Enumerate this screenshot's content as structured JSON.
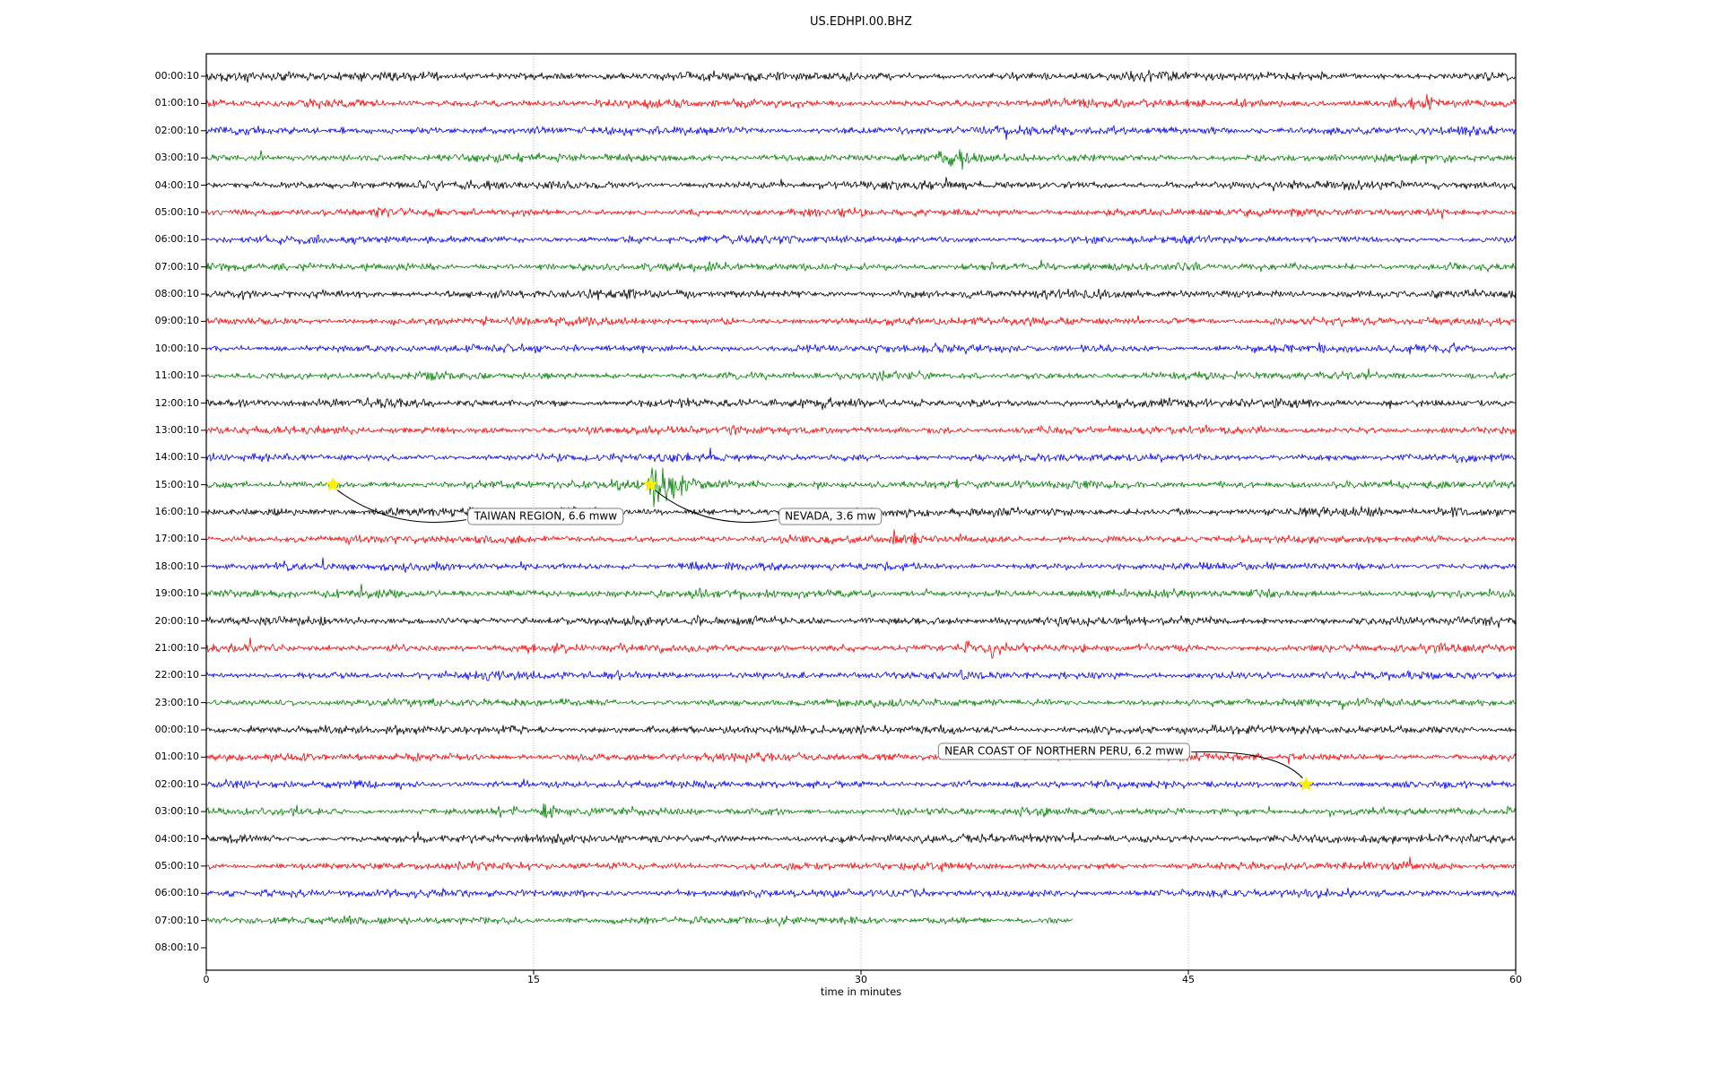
{
  "chart_data": {
    "type": "line",
    "variant": "seismogram-dayplot",
    "title": "US.EDHPI.00.BHZ",
    "xlabel": "time in minutes",
    "xlim": [
      0,
      60
    ],
    "x_ticks": [
      0,
      15,
      30,
      45,
      60
    ],
    "grid": "vertical-dotted",
    "grid_color": "#b0b0b0",
    "frame_color": "#000000",
    "star_color": "#ffee00",
    "color_cycle": [
      "#000000",
      "#ff0000",
      "#0000ff",
      "#008000"
    ],
    "rows": [
      {
        "label": "00:00:10",
        "color": "#000000",
        "end_min": 60,
        "amp": 2.4,
        "bursts": []
      },
      {
        "label": "01:00:10",
        "color": "#ff0000",
        "end_min": 60,
        "amp": 2.2,
        "bursts": [
          [
            39.3,
            5,
            0.12
          ],
          [
            40.1,
            4,
            0.1
          ],
          [
            44.3,
            4,
            0.1
          ],
          [
            54.5,
            7,
            0.15
          ],
          [
            55.2,
            5,
            0.1
          ],
          [
            56.0,
            8,
            0.18
          ],
          [
            56.6,
            5,
            0.12
          ]
        ]
      },
      {
        "label": "02:00:10",
        "color": "#0000ff",
        "end_min": 60,
        "amp": 2.2,
        "bursts": [
          [
            6.2,
            2.5,
            0.4
          ],
          [
            7.5,
            2.5,
            0.3
          ]
        ]
      },
      {
        "label": "03:00:10",
        "color": "#008000",
        "end_min": 60,
        "amp": 2.2,
        "bursts": [
          [
            2.2,
            7,
            0.06
          ],
          [
            2.5,
            10,
            0.05
          ],
          [
            33.6,
            8,
            0.12
          ],
          [
            34.1,
            12,
            0.1
          ],
          [
            34.6,
            10,
            0.12
          ],
          [
            35.1,
            6,
            0.15
          ]
        ]
      },
      {
        "label": "04:00:10",
        "color": "#000000",
        "end_min": 60,
        "amp": 2.3,
        "bursts": []
      },
      {
        "label": "05:00:10",
        "color": "#ff0000",
        "end_min": 60,
        "amp": 2.1,
        "bursts": []
      },
      {
        "label": "06:00:10",
        "color": "#0000ff",
        "end_min": 60,
        "amp": 2.1,
        "bursts": []
      },
      {
        "label": "07:00:10",
        "color": "#008000",
        "end_min": 60,
        "amp": 2.1,
        "bursts": []
      },
      {
        "label": "08:00:10",
        "color": "#000000",
        "end_min": 60,
        "amp": 2.3,
        "bursts": []
      },
      {
        "label": "09:00:10",
        "color": "#ff0000",
        "end_min": 60,
        "amp": 2.1,
        "bursts": []
      },
      {
        "label": "10:00:10",
        "color": "#0000ff",
        "end_min": 60,
        "amp": 2.1,
        "bursts": []
      },
      {
        "label": "11:00:10",
        "color": "#008000",
        "end_min": 60,
        "amp": 2.0,
        "bursts": []
      },
      {
        "label": "12:00:10",
        "color": "#000000",
        "end_min": 60,
        "amp": 2.3,
        "bursts": []
      },
      {
        "label": "13:00:10",
        "color": "#ff0000",
        "end_min": 60,
        "amp": 2.1,
        "bursts": []
      },
      {
        "label": "14:00:10",
        "color": "#0000ff",
        "end_min": 60,
        "amp": 2.0,
        "bursts": []
      },
      {
        "label": "15:00:10",
        "color": "#008000",
        "end_min": 60,
        "amp": 2.1,
        "bursts": [
          [
            18.8,
            9,
            0.08
          ],
          [
            19.1,
            6,
            0.1
          ],
          [
            20.45,
            26,
            0.12
          ],
          [
            20.8,
            20,
            0.2
          ],
          [
            21.3,
            14,
            0.25
          ],
          [
            22.0,
            8,
            0.5
          ],
          [
            23.5,
            4,
            1.0
          ]
        ]
      },
      {
        "label": "16:00:10",
        "color": "#000000",
        "end_min": 60,
        "amp": 2.3,
        "bursts": []
      },
      {
        "label": "17:00:10",
        "color": "#ff0000",
        "end_min": 60,
        "amp": 2.1,
        "bursts": [
          [
            31.5,
            13,
            0.08
          ],
          [
            31.9,
            9,
            0.1
          ],
          [
            32.4,
            7,
            0.12
          ]
        ]
      },
      {
        "label": "18:00:10",
        "color": "#0000ff",
        "end_min": 60,
        "amp": 2.0,
        "bursts": [
          [
            14.4,
            8,
            0.05
          ],
          [
            14.7,
            5,
            0.08
          ],
          [
            15.1,
            4,
            0.05
          ],
          [
            22.3,
            6,
            0.15
          ]
        ]
      },
      {
        "label": "19:00:10",
        "color": "#008000",
        "end_min": 60,
        "amp": 2.2,
        "bursts": [
          [
            8.9,
            3,
            0.3
          ],
          [
            19.2,
            6,
            0.06
          ],
          [
            22.6,
            5,
            0.06
          ],
          [
            24.4,
            4,
            0.06
          ],
          [
            26.2,
            4,
            0.05
          ],
          [
            33.0,
            3,
            0.2
          ],
          [
            44.6,
            5,
            0.1
          ],
          [
            45.2,
            4,
            0.08
          ],
          [
            48.7,
            4,
            0.05
          ]
        ]
      },
      {
        "label": "20:00:10",
        "color": "#000000",
        "end_min": 60,
        "amp": 2.3,
        "bursts": [
          [
            22.6,
            7,
            0.06
          ],
          [
            59.0,
            4,
            0.25
          ]
        ]
      },
      {
        "label": "21:00:10",
        "color": "#ff0000",
        "end_min": 60,
        "amp": 2.2,
        "bursts": [
          [
            2.0,
            11,
            0.05
          ],
          [
            2.3,
            6,
            0.1
          ],
          [
            6.9,
            4,
            0.1
          ],
          [
            8.3,
            4,
            0.12
          ],
          [
            34.9,
            9,
            0.15
          ],
          [
            36.0,
            12,
            0.1
          ],
          [
            36.4,
            6,
            0.1
          ]
        ]
      },
      {
        "label": "22:00:10",
        "color": "#0000ff",
        "end_min": 60,
        "amp": 2.1,
        "bursts": []
      },
      {
        "label": "23:00:10",
        "color": "#008000",
        "end_min": 60,
        "amp": 2.0,
        "bursts": [
          [
            12.7,
            4,
            0.1
          ]
        ]
      },
      {
        "label": "00:00:10",
        "color": "#000000",
        "end_min": 60,
        "amp": 2.3,
        "bursts": [
          [
            22.7,
            6,
            0.05
          ]
        ]
      },
      {
        "label": "01:00:10",
        "color": "#ff0000",
        "end_min": 60,
        "amp": 2.1,
        "bursts": [
          [
            46.6,
            3,
            0.15
          ],
          [
            48.3,
            4,
            0.1
          ]
        ]
      },
      {
        "label": "02:00:10",
        "color": "#0000ff",
        "end_min": 60,
        "amp": 2.1,
        "bursts": []
      },
      {
        "label": "03:00:10",
        "color": "#008000",
        "end_min": 60,
        "amp": 2.0,
        "bursts": [
          [
            13.4,
            10,
            0.05
          ],
          [
            14.2,
            8,
            0.08
          ],
          [
            15.5,
            14,
            0.06
          ],
          [
            15.9,
            8,
            0.12
          ]
        ]
      },
      {
        "label": "04:00:10",
        "color": "#000000",
        "end_min": 60,
        "amp": 2.3,
        "bursts": []
      },
      {
        "label": "05:00:10",
        "color": "#ff0000",
        "end_min": 60,
        "amp": 2.1,
        "bursts": []
      },
      {
        "label": "06:00:10",
        "color": "#0000ff",
        "end_min": 60,
        "amp": 2.1,
        "bursts": [
          [
            47.7,
            2.5,
            0.3
          ]
        ]
      },
      {
        "label": "07:00:10",
        "color": "#008000",
        "end_min": 39.7,
        "amp": 2.1,
        "bursts": []
      },
      {
        "label": "08:00:10",
        "color": "#000000",
        "end_min": 0,
        "amp": 0,
        "bursts": []
      }
    ],
    "events": [
      {
        "label": "TAIWAN REGION, 6.6 mww",
        "row": 15,
        "minute": 5.8,
        "box_minute": 15.55,
        "box_dy": 35
      },
      {
        "label": "NEVADA, 3.6 mw",
        "row": 15,
        "minute": 20.35,
        "box_minute": 28.6,
        "box_dy": 35
      },
      {
        "label": "NEAR COAST OF NORTHERN PERU, 6.2 mww",
        "row": 26,
        "minute": 50.4,
        "box_minute": 39.3,
        "box_dy": -37
      }
    ]
  }
}
